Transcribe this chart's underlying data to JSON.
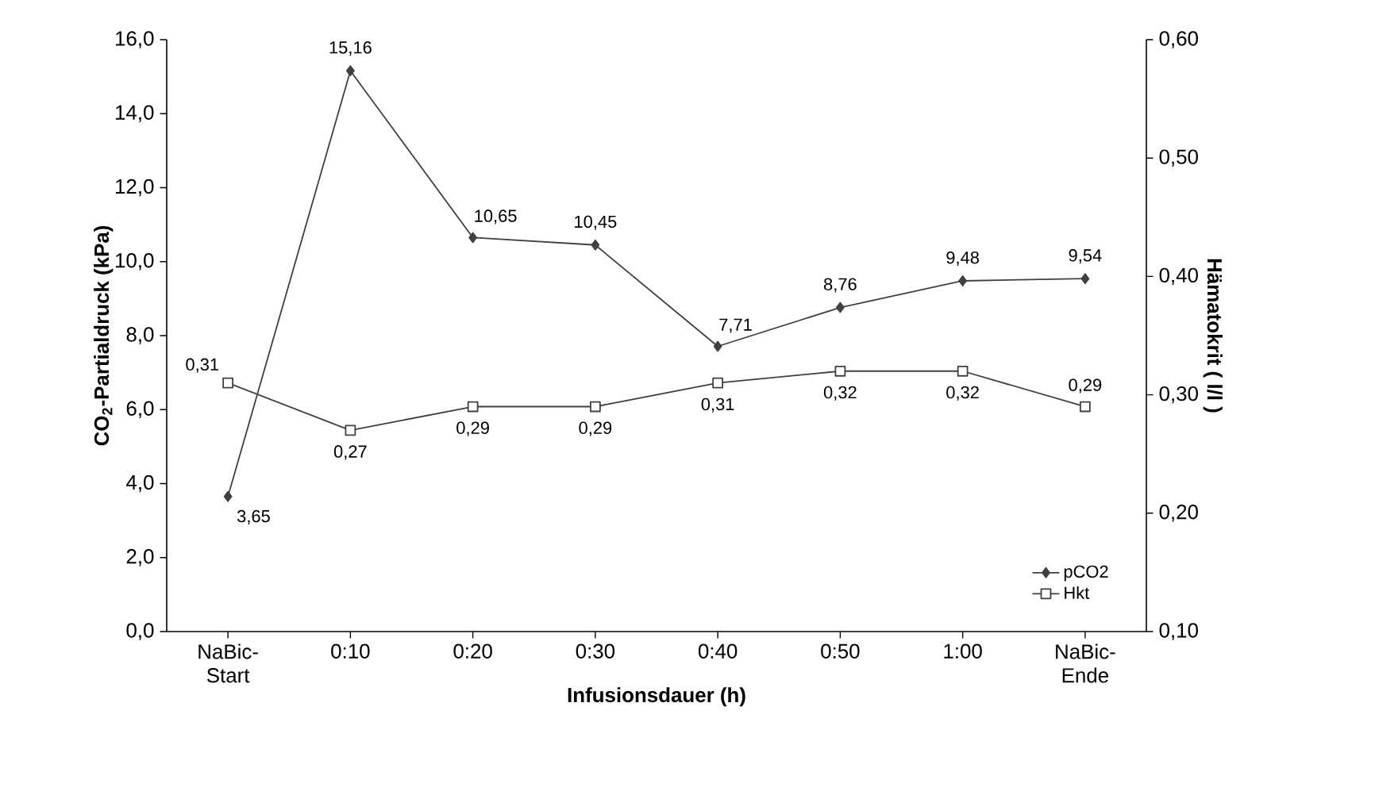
{
  "chart_data": {
    "type": "line",
    "xlabel": "Infusionsdauer (h)",
    "ylabel": "CO$_{2}$-Partialdruck (kPa)",
    "y2label": "Hämatokrit ( l/l )",
    "categories": [
      "NaBic-Start",
      "0:10",
      "0:20",
      "0:30",
      "0:40",
      "0:50",
      "1:00",
      "NaBic-Ende"
    ],
    "series": [
      {
        "name": "pCO2",
        "color": "#404040",
        "marker": "diamond",
        "values": [
          3.65,
          15.16,
          10.65,
          10.45,
          7.71,
          8.76,
          9.48,
          9.54
        ],
        "value_labels": [
          "3,65",
          "15,16",
          "10,65",
          "10,45",
          "7,71",
          "8,76",
          "9,48",
          "9,54"
        ]
      },
      {
        "name": "Hkt",
        "color": "#404040",
        "marker": "square",
        "axis": "y2",
        "values": [
          0.31,
          0.27,
          0.29,
          0.29,
          0.31,
          0.32,
          0.32,
          0.29
        ],
        "value_labels": [
          "0,31",
          "0,27",
          "0,29",
          "0,29",
          "0,31",
          "0,32",
          "0,32",
          "0,29"
        ]
      }
    ],
    "ylim": [
      0,
      16
    ],
    "yticks": [
      {
        "value": 0,
        "label": "0,0"
      },
      {
        "value": 2,
        "label": "2,0"
      },
      {
        "value": 4,
        "label": "4,0"
      },
      {
        "value": 6,
        "label": "6,0"
      },
      {
        "value": 8,
        "label": "8,0"
      },
      {
        "value": 10,
        "label": "10,0"
      },
      {
        "value": 12,
        "label": "12,0"
      },
      {
        "value": 14,
        "label": "14,0"
      },
      {
        "value": 16,
        "label": "16,0"
      }
    ],
    "y2lim": [
      0.1,
      0.6
    ],
    "y2ticks": [
      {
        "value": 0.1,
        "label": "0,10"
      },
      {
        "value": 0.2,
        "label": "0,20"
      },
      {
        "value": 0.3,
        "label": "0,30"
      },
      {
        "value": 0.4,
        "label": "0,40"
      },
      {
        "value": 0.5,
        "label": "0,50"
      },
      {
        "value": 0.6,
        "label": "0,60"
      }
    ],
    "legend": "bottom right",
    "grid": false
  }
}
